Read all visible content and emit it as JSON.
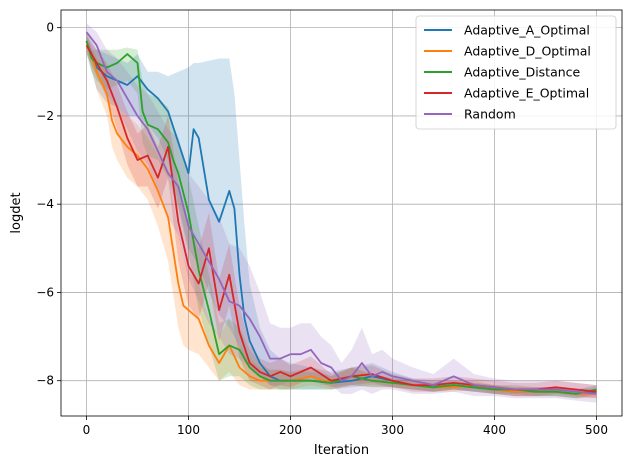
{
  "chart_data": {
    "type": "line",
    "xlabel": "Iteration",
    "ylabel": "logdet",
    "xlim": [
      -25,
      525
    ],
    "ylim": [
      -8.8,
      0.4
    ],
    "xticks": [
      0,
      100,
      200,
      300,
      400,
      500
    ],
    "yticks": [
      0,
      -2,
      -4,
      -6,
      -8
    ],
    "xtick_labels": [
      "0",
      "100",
      "200",
      "300",
      "400",
      "500"
    ],
    "ytick_labels": [
      "0",
      "−2",
      "−4",
      "−6",
      "−8"
    ],
    "grid": true,
    "legend_position": "top-right",
    "shaded_band": "variability range around each series mean",
    "series": [
      {
        "name": "Adaptive_A_Optimal",
        "color": "#1f77b4",
        "x": [
          0,
          10,
          20,
          30,
          40,
          50,
          60,
          70,
          80,
          90,
          100,
          105,
          110,
          120,
          130,
          140,
          145,
          150,
          155,
          160,
          170,
          180,
          190,
          200,
          220,
          240,
          260,
          280,
          300,
          320,
          340,
          360,
          380,
          400,
          420,
          440,
          460,
          480,
          500
        ],
        "y": [
          -0.3,
          -0.9,
          -1.1,
          -1.2,
          -1.3,
          -1.1,
          -1.4,
          -1.6,
          -1.9,
          -2.6,
          -3.3,
          -2.3,
          -2.5,
          -3.9,
          -4.4,
          -3.7,
          -4.1,
          -5.6,
          -6.6,
          -7.1,
          -7.6,
          -7.9,
          -8.0,
          -8.0,
          -8.0,
          -8.05,
          -8.0,
          -7.9,
          -8.0,
          -8.1,
          -8.15,
          -8.1,
          -8.15,
          -8.2,
          -8.25,
          -8.25,
          -8.25,
          -8.3,
          -8.25
        ],
        "band_upper": [
          -0.1,
          -0.5,
          -0.6,
          -0.7,
          -0.8,
          -0.6,
          -1.0,
          -1.0,
          -1.1,
          -1.0,
          -0.9,
          -0.8,
          -0.8,
          -0.75,
          -0.7,
          -0.7,
          -1.5,
          -3.0,
          -4.5,
          -5.8,
          -6.8,
          -7.3,
          -7.5,
          -7.6,
          -7.7,
          -7.8,
          -7.7,
          -7.6,
          -7.8,
          -7.95,
          -8.0,
          -8.0,
          -8.05,
          -8.1,
          -8.15,
          -8.15,
          -8.15,
          -8.2,
          -8.15
        ],
        "band_lower": [
          -0.6,
          -1.4,
          -1.7,
          -1.8,
          -2.0,
          -2.0,
          -2.2,
          -2.5,
          -3.0,
          -4.0,
          -5.0,
          -5.2,
          -5.4,
          -6.0,
          -6.5,
          -6.8,
          -7.0,
          -7.2,
          -7.5,
          -7.7,
          -7.9,
          -8.1,
          -8.2,
          -8.2,
          -8.2,
          -8.2,
          -8.15,
          -8.1,
          -8.15,
          -8.2,
          -8.25,
          -8.2,
          -8.25,
          -8.3,
          -8.35,
          -8.35,
          -8.35,
          -8.4,
          -8.35
        ]
      },
      {
        "name": "Adaptive_D_Optimal",
        "color": "#ff7f0e",
        "x": [
          0,
          10,
          20,
          25,
          30,
          40,
          50,
          60,
          70,
          80,
          90,
          95,
          100,
          110,
          120,
          130,
          140,
          150,
          160,
          170,
          180,
          190,
          200,
          220,
          240,
          260,
          280,
          300,
          320,
          340,
          360,
          380,
          400,
          420,
          440,
          460,
          480,
          500
        ],
        "y": [
          -0.3,
          -1.0,
          -1.5,
          -2.1,
          -2.4,
          -2.7,
          -2.9,
          -3.2,
          -3.7,
          -4.3,
          -5.8,
          -6.3,
          -6.4,
          -6.6,
          -7.2,
          -7.6,
          -7.2,
          -7.7,
          -7.9,
          -8.0,
          -8.0,
          -8.0,
          -8.0,
          -7.9,
          -8.05,
          -7.9,
          -8.0,
          -8.05,
          -8.1,
          -8.15,
          -8.15,
          -8.1,
          -8.2,
          -8.25,
          -8.25,
          -8.25,
          -8.3,
          -8.3
        ],
        "band_upper": [
          -0.1,
          -0.7,
          -1.0,
          -1.6,
          -1.8,
          -2.0,
          -2.2,
          -2.5,
          -2.9,
          -3.3,
          -4.6,
          -5.2,
          -5.5,
          -5.8,
          -6.6,
          -7.0,
          -6.6,
          -7.2,
          -7.5,
          -7.7,
          -7.75,
          -7.75,
          -7.8,
          -7.7,
          -7.9,
          -7.7,
          -7.85,
          -7.95,
          -8.0,
          -8.05,
          -8.05,
          -8.0,
          -8.1,
          -8.15,
          -8.15,
          -8.15,
          -8.2,
          -8.2
        ],
        "band_lower": [
          -0.5,
          -1.4,
          -2.0,
          -2.7,
          -3.0,
          -3.4,
          -3.6,
          -3.9,
          -4.5,
          -5.3,
          -6.8,
          -7.2,
          -7.3,
          -7.4,
          -7.7,
          -8.0,
          -7.8,
          -8.1,
          -8.2,
          -8.2,
          -8.2,
          -8.2,
          -8.2,
          -8.1,
          -8.2,
          -8.1,
          -8.15,
          -8.15,
          -8.2,
          -8.25,
          -8.25,
          -8.2,
          -8.3,
          -8.35,
          -8.35,
          -8.35,
          -8.4,
          -8.4
        ]
      },
      {
        "name": "Adaptive_Distance",
        "color": "#2ca02c",
        "x": [
          0,
          5,
          10,
          20,
          30,
          40,
          50,
          55,
          60,
          70,
          80,
          85,
          90,
          100,
          110,
          120,
          130,
          140,
          150,
          160,
          170,
          180,
          190,
          200,
          220,
          240,
          260,
          280,
          300,
          320,
          340,
          360,
          380,
          400,
          420,
          440,
          460,
          480,
          500
        ],
        "y": [
          -0.3,
          -0.7,
          -0.8,
          -0.9,
          -0.8,
          -0.6,
          -0.8,
          -1.9,
          -2.2,
          -2.3,
          -2.6,
          -3.0,
          -3.3,
          -4.2,
          -5.5,
          -6.4,
          -7.4,
          -7.2,
          -7.3,
          -7.7,
          -7.9,
          -8.0,
          -8.0,
          -8.0,
          -8.0,
          -8.05,
          -7.9,
          -8.0,
          -8.05,
          -8.1,
          -8.15,
          -8.1,
          -8.15,
          -8.2,
          -8.2,
          -8.25,
          -8.25,
          -8.3,
          -8.2
        ],
        "band_upper": [
          -0.1,
          -0.5,
          -0.5,
          -0.5,
          -0.5,
          -0.45,
          -0.5,
          -1.2,
          -1.5,
          -1.6,
          -1.8,
          -2.2,
          -2.5,
          -3.4,
          -4.5,
          -5.6,
          -6.7,
          -6.6,
          -6.8,
          -7.3,
          -7.6,
          -7.75,
          -7.75,
          -7.8,
          -7.8,
          -7.9,
          -7.7,
          -7.85,
          -7.95,
          -8.0,
          -8.05,
          -8.0,
          -8.05,
          -8.1,
          -8.1,
          -8.15,
          -8.15,
          -8.2,
          -8.1
        ],
        "band_lower": [
          -0.5,
          -1.0,
          -1.2,
          -1.4,
          -1.3,
          -1.2,
          -1.5,
          -2.6,
          -2.9,
          -3.0,
          -3.4,
          -3.8,
          -4.1,
          -5.1,
          -6.4,
          -7.2,
          -8.0,
          -7.9,
          -7.9,
          -8.1,
          -8.2,
          -8.2,
          -8.2,
          -8.2,
          -8.2,
          -8.2,
          -8.1,
          -8.15,
          -8.15,
          -8.2,
          -8.25,
          -8.2,
          -8.25,
          -8.3,
          -8.3,
          -8.35,
          -8.35,
          -8.4,
          -8.3
        ]
      },
      {
        "name": "Adaptive_E_Optimal",
        "color": "#d62728",
        "x": [
          0,
          10,
          20,
          30,
          40,
          50,
          60,
          70,
          80,
          90,
          100,
          110,
          120,
          130,
          140,
          150,
          160,
          170,
          180,
          190,
          200,
          220,
          240,
          260,
          280,
          300,
          320,
          340,
          360,
          380,
          400,
          420,
          440,
          460,
          480,
          500
        ],
        "y": [
          -0.4,
          -0.8,
          -1.2,
          -1.8,
          -2.5,
          -3.0,
          -2.9,
          -3.4,
          -2.7,
          -4.4,
          -5.4,
          -5.8,
          -5.0,
          -6.4,
          -5.6,
          -6.9,
          -7.6,
          -7.8,
          -7.9,
          -7.8,
          -7.9,
          -7.7,
          -8.0,
          -7.9,
          -7.85,
          -8.0,
          -8.1,
          -8.1,
          -8.05,
          -8.1,
          -8.15,
          -8.2,
          -8.2,
          -8.15,
          -8.2,
          -8.25
        ],
        "band_upper": [
          -0.2,
          -0.5,
          -0.8,
          -1.3,
          -1.9,
          -2.4,
          -2.2,
          -2.7,
          -2.0,
          -3.5,
          -4.5,
          -5.0,
          -4.2,
          -5.7,
          -4.9,
          -6.3,
          -7.2,
          -7.5,
          -7.6,
          -7.5,
          -7.65,
          -7.45,
          -7.85,
          -7.7,
          -7.65,
          -7.85,
          -7.95,
          -7.95,
          -7.9,
          -7.95,
          -8.0,
          -8.05,
          -8.05,
          -8.0,
          -8.05,
          -8.1
        ],
        "band_lower": [
          -0.6,
          -1.1,
          -1.6,
          -2.3,
          -3.1,
          -3.6,
          -3.6,
          -4.1,
          -3.4,
          -5.3,
          -6.3,
          -6.6,
          -5.8,
          -7.1,
          -6.3,
          -7.5,
          -8.0,
          -8.1,
          -8.2,
          -8.1,
          -8.15,
          -7.95,
          -8.15,
          -8.1,
          -8.05,
          -8.15,
          -8.25,
          -8.25,
          -8.2,
          -8.25,
          -8.3,
          -8.35,
          -8.35,
          -8.3,
          -8.35,
          -8.4
        ]
      },
      {
        "name": "Random",
        "color": "#9467bd",
        "x": [
          0,
          10,
          20,
          30,
          40,
          50,
          60,
          70,
          80,
          90,
          100,
          110,
          120,
          130,
          140,
          150,
          160,
          170,
          180,
          190,
          200,
          210,
          220,
          230,
          240,
          250,
          260,
          270,
          280,
          290,
          300,
          320,
          340,
          360,
          380,
          400,
          420,
          440,
          460,
          480,
          500
        ],
        "y": [
          -0.1,
          -0.4,
          -1.0,
          -1.2,
          -1.6,
          -2.0,
          -2.3,
          -2.8,
          -3.3,
          -3.6,
          -4.5,
          -4.9,
          -5.3,
          -5.7,
          -6.2,
          -6.3,
          -6.6,
          -7.0,
          -7.5,
          -7.5,
          -7.4,
          -7.4,
          -7.3,
          -7.6,
          -7.7,
          -8.0,
          -7.9,
          -7.6,
          -7.9,
          -7.8,
          -7.9,
          -8.0,
          -8.1,
          -7.9,
          -8.1,
          -8.15,
          -8.2,
          -8.2,
          -8.2,
          -8.25,
          -8.3
        ],
        "band_upper": [
          0.1,
          -0.1,
          -0.5,
          -0.7,
          -1.0,
          -1.3,
          -1.5,
          -1.9,
          -2.3,
          -2.5,
          -3.3,
          -3.6,
          -3.9,
          -4.3,
          -4.9,
          -5.0,
          -5.4,
          -6.0,
          -6.7,
          -6.8,
          -6.8,
          -6.7,
          -6.7,
          -7.0,
          -7.2,
          -7.6,
          -7.3,
          -6.8,
          -7.4,
          -7.3,
          -7.5,
          -7.7,
          -7.85,
          -7.5,
          -7.85,
          -7.95,
          -8.0,
          -8.0,
          -8.0,
          -8.05,
          -8.1
        ],
        "band_lower": [
          -0.3,
          -0.8,
          -1.5,
          -1.8,
          -2.3,
          -2.8,
          -3.1,
          -3.7,
          -4.3,
          -4.7,
          -5.7,
          -6.2,
          -6.7,
          -7.0,
          -7.4,
          -7.5,
          -7.7,
          -7.9,
          -8.1,
          -8.1,
          -8.0,
          -8.0,
          -7.9,
          -8.1,
          -8.1,
          -8.3,
          -8.3,
          -8.2,
          -8.3,
          -8.2,
          -8.2,
          -8.3,
          -8.3,
          -8.25,
          -8.35,
          -8.35,
          -8.4,
          -8.4,
          -8.4,
          -8.45,
          -8.5
        ]
      }
    ]
  }
}
